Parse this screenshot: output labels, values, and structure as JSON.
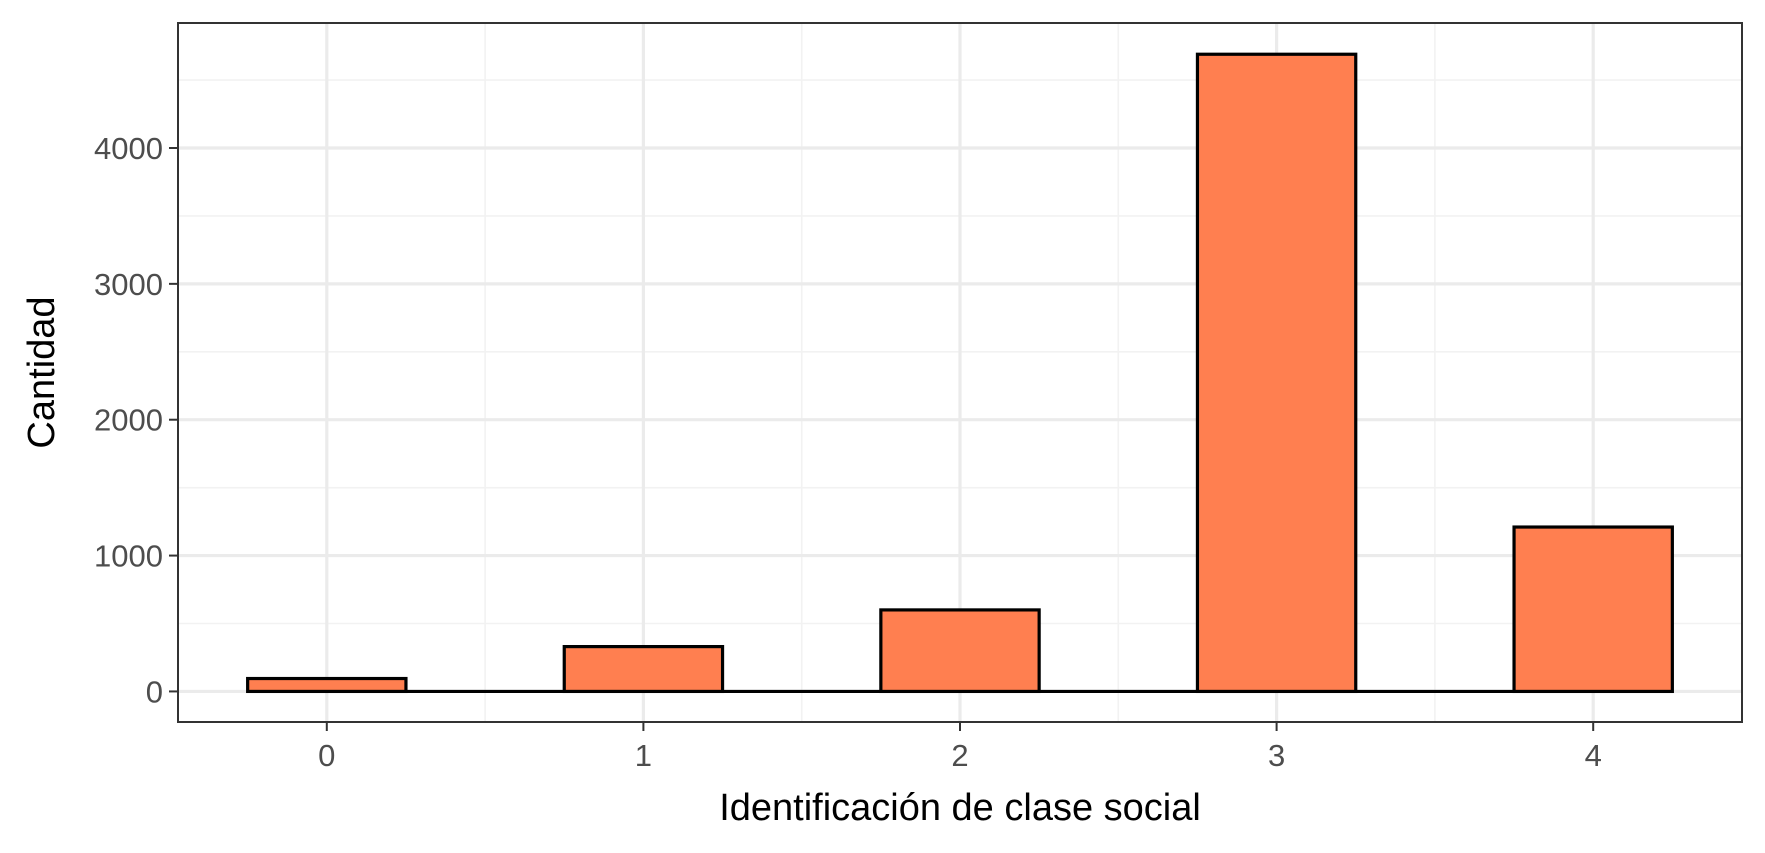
{
  "chart_data": {
    "type": "bar",
    "categories": [
      "0",
      "1",
      "2",
      "3",
      "4"
    ],
    "values": [
      95,
      330,
      600,
      4690,
      1210
    ],
    "title": "",
    "xlabel": "Identificación de clase social",
    "ylabel": "Cantidad",
    "x_ticks": [
      "0",
      "1",
      "2",
      "3",
      "4"
    ],
    "y_ticks": [
      "0",
      "1000",
      "2000",
      "3000",
      "4000"
    ],
    "y_tick_values": [
      0,
      1000,
      2000,
      3000,
      4000
    ],
    "ylim": [
      -225,
      4920
    ],
    "xlim": [
      -0.47,
      4.47
    ],
    "bar_width": 0.5,
    "grid": true,
    "colors": {
      "bar_fill": "#FF7F50",
      "bar_stroke": "#000000",
      "grid_major": "#EBEBEB",
      "grid_minor": "#F2F2F2",
      "panel_border": "#333333"
    }
  }
}
